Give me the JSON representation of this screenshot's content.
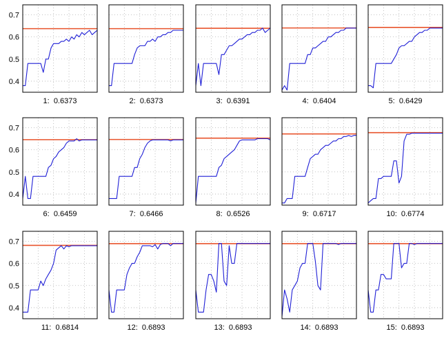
{
  "chart_data": {
    "type": "line",
    "layout": {
      "rows": 3,
      "cols": 5
    },
    "ylim": [
      0.35,
      0.745
    ],
    "yticks": [
      0.4,
      0.5,
      0.6,
      0.7
    ],
    "grid": true,
    "colors": {
      "reference": "#e8532b",
      "series": "#1f1fd6",
      "grid": "#b0b0b0",
      "frame": "#000000"
    },
    "panels": [
      {
        "caption": "1:  0.6373",
        "reference": 0.6373,
        "x": [
          0,
          1,
          2,
          3,
          4,
          5,
          6,
          7,
          8,
          9,
          10,
          11,
          12,
          13,
          14,
          15,
          16,
          17,
          18,
          19,
          20,
          21,
          22,
          23,
          24,
          25,
          26,
          27,
          28,
          29
        ],
        "y": [
          0.38,
          0.38,
          0.48,
          0.48,
          0.48,
          0.48,
          0.48,
          0.48,
          0.44,
          0.5,
          0.5,
          0.55,
          0.57,
          0.57,
          0.57,
          0.58,
          0.58,
          0.59,
          0.58,
          0.6,
          0.59,
          0.61,
          0.6,
          0.62,
          0.61,
          0.62,
          0.63,
          0.61,
          0.62,
          0.63
        ]
      },
      {
        "caption": "2:  0.6373",
        "reference": 0.6373,
        "x": [
          0,
          1,
          2,
          3,
          4,
          5,
          6,
          7,
          8,
          9,
          10,
          11,
          12,
          13,
          14,
          15,
          16,
          17,
          18,
          19,
          20,
          21,
          22,
          23,
          24,
          25,
          26,
          27,
          28,
          29
        ],
        "y": [
          0.38,
          0.38,
          0.48,
          0.48,
          0.48,
          0.48,
          0.48,
          0.48,
          0.48,
          0.48,
          0.52,
          0.55,
          0.56,
          0.56,
          0.56,
          0.58,
          0.58,
          0.59,
          0.58,
          0.6,
          0.6,
          0.61,
          0.61,
          0.62,
          0.62,
          0.63,
          0.63,
          0.63,
          0.63,
          0.63
        ]
      },
      {
        "caption": "3:  0.6391",
        "reference": 0.6391,
        "x": [
          0,
          1,
          2,
          3,
          4,
          5,
          6,
          7,
          8,
          9,
          10,
          11,
          12,
          13,
          14,
          15,
          16,
          17,
          18,
          19,
          20,
          21,
          22,
          23,
          24,
          25,
          26,
          27,
          28,
          29
        ],
        "y": [
          0.38,
          0.48,
          0.38,
          0.48,
          0.48,
          0.48,
          0.48,
          0.48,
          0.48,
          0.43,
          0.52,
          0.52,
          0.54,
          0.56,
          0.56,
          0.57,
          0.58,
          0.59,
          0.59,
          0.6,
          0.61,
          0.61,
          0.62,
          0.62,
          0.63,
          0.63,
          0.64,
          0.62,
          0.63,
          0.64
        ]
      },
      {
        "caption": "4:  0.6404",
        "reference": 0.6404,
        "x": [
          0,
          1,
          2,
          3,
          4,
          5,
          6,
          7,
          8,
          9,
          10,
          11,
          12,
          13,
          14,
          15,
          16,
          17,
          18,
          19,
          20,
          21,
          22,
          23,
          24,
          25,
          26,
          27,
          28,
          29
        ],
        "y": [
          0.36,
          0.38,
          0.36,
          0.48,
          0.48,
          0.48,
          0.48,
          0.48,
          0.48,
          0.48,
          0.52,
          0.52,
          0.55,
          0.55,
          0.56,
          0.57,
          0.58,
          0.58,
          0.6,
          0.6,
          0.61,
          0.62,
          0.62,
          0.63,
          0.63,
          0.64,
          0.64,
          0.64,
          0.64,
          0.64
        ]
      },
      {
        "caption": "5:  0.6429",
        "reference": 0.6429,
        "x": [
          0,
          1,
          2,
          3,
          4,
          5,
          6,
          7,
          8,
          9,
          10,
          11,
          12,
          13,
          14,
          15,
          16,
          17,
          18,
          19,
          20,
          21,
          22,
          23,
          24,
          25,
          26,
          27,
          28,
          29
        ],
        "y": [
          0.38,
          0.38,
          0.37,
          0.48,
          0.48,
          0.48,
          0.48,
          0.48,
          0.48,
          0.48,
          0.5,
          0.52,
          0.55,
          0.56,
          0.56,
          0.57,
          0.58,
          0.58,
          0.6,
          0.61,
          0.62,
          0.62,
          0.63,
          0.63,
          0.64,
          0.64,
          0.64,
          0.64,
          0.64,
          0.64
        ]
      },
      {
        "caption": "6:  0.6459",
        "reference": 0.6459,
        "x": [
          0,
          1,
          2,
          3,
          4,
          5,
          6,
          7,
          8,
          9,
          10,
          11,
          12,
          13,
          14,
          15,
          16,
          17,
          18,
          19,
          20,
          21,
          22,
          23,
          24,
          25,
          26,
          27,
          28,
          29
        ],
        "y": [
          0.38,
          0.48,
          0.38,
          0.38,
          0.48,
          0.48,
          0.48,
          0.48,
          0.48,
          0.48,
          0.52,
          0.53,
          0.56,
          0.57,
          0.59,
          0.6,
          0.61,
          0.63,
          0.64,
          0.64,
          0.64,
          0.65,
          0.64,
          0.645,
          0.645,
          0.645,
          0.645,
          0.645,
          0.645,
          0.645
        ]
      },
      {
        "caption": "7:  0.6466",
        "reference": 0.6466,
        "x": [
          0,
          1,
          2,
          3,
          4,
          5,
          6,
          7,
          8,
          9,
          10,
          11,
          12,
          13,
          14,
          15,
          16,
          17,
          18,
          19,
          20,
          21,
          22,
          23,
          24,
          25,
          26,
          27,
          28,
          29
        ],
        "y": [
          0.38,
          0.38,
          0.38,
          0.38,
          0.48,
          0.48,
          0.48,
          0.48,
          0.48,
          0.48,
          0.52,
          0.52,
          0.56,
          0.58,
          0.61,
          0.63,
          0.64,
          0.645,
          0.645,
          0.645,
          0.645,
          0.645,
          0.645,
          0.645,
          0.64,
          0.645,
          0.645,
          0.645,
          0.645,
          0.645
        ]
      },
      {
        "caption": "8:  0.6526",
        "reference": 0.6526,
        "x": [
          0,
          1,
          2,
          3,
          4,
          5,
          6,
          7,
          8,
          9,
          10,
          11,
          12,
          13,
          14,
          15,
          16,
          17,
          18,
          19,
          20,
          21,
          22,
          23,
          24,
          25,
          26,
          27,
          28,
          29
        ],
        "y": [
          0.36,
          0.48,
          0.48,
          0.48,
          0.48,
          0.48,
          0.48,
          0.48,
          0.48,
          0.52,
          0.53,
          0.56,
          0.57,
          0.58,
          0.59,
          0.6,
          0.62,
          0.64,
          0.645,
          0.645,
          0.645,
          0.645,
          0.645,
          0.645,
          0.65,
          0.65,
          0.65,
          0.65,
          0.65,
          0.645
        ]
      },
      {
        "caption": "9:  0.6717",
        "reference": 0.6717,
        "x": [
          0,
          1,
          2,
          3,
          4,
          5,
          6,
          7,
          8,
          9,
          10,
          11,
          12,
          13,
          14,
          15,
          16,
          17,
          18,
          19,
          20,
          21,
          22,
          23,
          24,
          25,
          26,
          27,
          28,
          29
        ],
        "y": [
          0.36,
          0.36,
          0.38,
          0.38,
          0.38,
          0.48,
          0.48,
          0.48,
          0.48,
          0.48,
          0.52,
          0.56,
          0.57,
          0.58,
          0.58,
          0.6,
          0.61,
          0.62,
          0.62,
          0.63,
          0.64,
          0.64,
          0.65,
          0.65,
          0.66,
          0.66,
          0.665,
          0.66,
          0.665,
          0.665
        ]
      },
      {
        "caption": "10:  0.6774",
        "reference": 0.6774,
        "x": [
          0,
          1,
          2,
          3,
          4,
          5,
          6,
          7,
          8,
          9,
          10,
          11,
          12,
          13,
          14,
          15,
          16,
          17,
          18,
          19,
          20,
          21,
          22,
          23,
          24,
          25,
          26,
          27,
          28,
          29
        ],
        "y": [
          0.36,
          0.37,
          0.38,
          0.38,
          0.47,
          0.47,
          0.48,
          0.48,
          0.48,
          0.48,
          0.55,
          0.55,
          0.45,
          0.48,
          0.64,
          0.67,
          0.67,
          0.675,
          0.675,
          0.675,
          0.675,
          0.675,
          0.675,
          0.675,
          0.675,
          0.675,
          0.675,
          0.675,
          0.675,
          0.675
        ]
      },
      {
        "caption": "11:  0.6814",
        "reference": 0.6814,
        "x": [
          0,
          1,
          2,
          3,
          4,
          5,
          6,
          7,
          8,
          9,
          10,
          11,
          12,
          13,
          14,
          15,
          16,
          17,
          18,
          19,
          20,
          21,
          22,
          23,
          24,
          25,
          26,
          27,
          28,
          29
        ],
        "y": [
          0.38,
          0.38,
          0.38,
          0.48,
          0.48,
          0.48,
          0.48,
          0.52,
          0.5,
          0.53,
          0.55,
          0.57,
          0.6,
          0.66,
          0.67,
          0.68,
          0.665,
          0.68,
          0.675,
          0.68,
          0.68,
          0.68,
          0.68,
          0.68,
          0.68,
          0.68,
          0.68,
          0.68,
          0.68,
          0.68
        ]
      },
      {
        "caption": "12:  0.6893",
        "reference": 0.6893,
        "x": [
          0,
          1,
          2,
          3,
          4,
          5,
          6,
          7,
          8,
          9,
          10,
          11,
          12,
          13,
          14,
          15,
          16,
          17,
          18,
          19,
          20,
          21,
          22,
          23,
          24,
          25,
          26,
          27,
          28,
          29
        ],
        "y": [
          0.48,
          0.38,
          0.38,
          0.48,
          0.48,
          0.48,
          0.48,
          0.55,
          0.58,
          0.6,
          0.6,
          0.63,
          0.65,
          0.68,
          0.68,
          0.68,
          0.68,
          0.675,
          0.685,
          0.665,
          0.685,
          0.69,
          0.69,
          0.69,
          0.68,
          0.69,
          0.69,
          0.69,
          0.69,
          0.69
        ]
      },
      {
        "caption": "13:  0.6893",
        "reference": 0.6893,
        "x": [
          0,
          1,
          2,
          3,
          4,
          5,
          6,
          7,
          8,
          9,
          10,
          11,
          12,
          13,
          14,
          15,
          16,
          17,
          18,
          19,
          20,
          21,
          22,
          23,
          24,
          25,
          26,
          27,
          28,
          29
        ],
        "y": [
          0.48,
          0.38,
          0.38,
          0.38,
          0.48,
          0.55,
          0.55,
          0.52,
          0.47,
          0.69,
          0.69,
          0.52,
          0.5,
          0.68,
          0.6,
          0.6,
          0.69,
          0.69,
          0.69,
          0.69,
          0.69,
          0.69,
          0.69,
          0.69,
          0.69,
          0.69,
          0.69,
          0.69,
          0.69,
          0.69
        ]
      },
      {
        "caption": "14:  0.6893",
        "reference": 0.6893,
        "x": [
          0,
          1,
          2,
          3,
          4,
          5,
          6,
          7,
          8,
          9,
          10,
          11,
          12,
          13,
          14,
          15,
          16,
          17,
          18,
          19,
          20,
          21,
          22,
          23,
          24,
          25,
          26,
          27,
          28,
          29
        ],
        "y": [
          0.36,
          0.48,
          0.44,
          0.38,
          0.48,
          0.5,
          0.52,
          0.58,
          0.6,
          0.6,
          0.69,
          0.69,
          0.69,
          0.61,
          0.5,
          0.48,
          0.69,
          0.69,
          0.69,
          0.69,
          0.69,
          0.69,
          0.685,
          0.69,
          0.69,
          0.69,
          0.69,
          0.69,
          0.69,
          0.69
        ]
      },
      {
        "caption": "15:  0.6893",
        "reference": 0.6893,
        "x": [
          0,
          1,
          2,
          3,
          4,
          5,
          6,
          7,
          8,
          9,
          10,
          11,
          12,
          13,
          14,
          15,
          16,
          17,
          18,
          19,
          20,
          21,
          22,
          23,
          24,
          25,
          26,
          27,
          28,
          29
        ],
        "y": [
          0.48,
          0.38,
          0.38,
          0.48,
          0.48,
          0.55,
          0.55,
          0.53,
          0.53,
          0.53,
          0.69,
          0.69,
          0.69,
          0.58,
          0.6,
          0.6,
          0.69,
          0.69,
          0.685,
          0.69,
          0.69,
          0.69,
          0.69,
          0.69,
          0.69,
          0.69,
          0.69,
          0.69,
          0.69,
          0.69
        ]
      }
    ]
  }
}
